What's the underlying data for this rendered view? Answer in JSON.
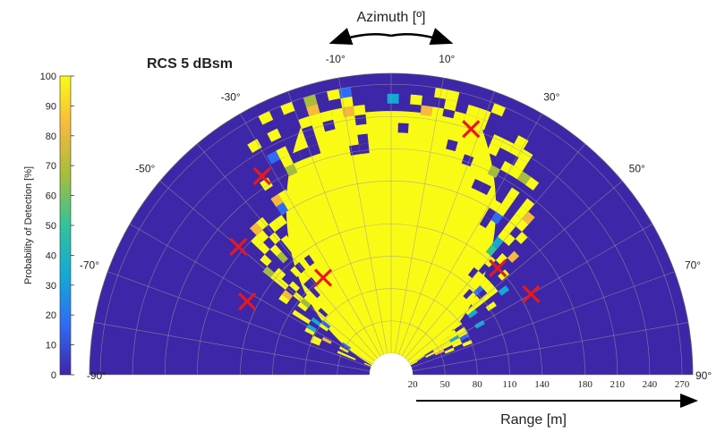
{
  "chart_data": {
    "type": "heatmap",
    "title": "RCS 5 dBsm",
    "azimuth_label": "Azimuth [º]",
    "range_label": "Range [m]",
    "colorbar_label": "Probability of Detection [%]",
    "colorbar_ticks": [
      "0",
      "10",
      "20",
      "30",
      "40",
      "50",
      "60",
      "70",
      "80",
      "90",
      "100"
    ],
    "colorbar_range": [
      0,
      100
    ],
    "colormap": [
      "#3e26a8",
      "#2f6cf6",
      "#13a8d6",
      "#31c39a",
      "#a5be3b",
      "#f5b93c",
      "#f9fb15"
    ],
    "azimuth_ticks": [
      {
        "deg": -90,
        "label": "-90°"
      },
      {
        "deg": -70,
        "label": "-70°"
      },
      {
        "deg": -50,
        "label": "-50°"
      },
      {
        "deg": -30,
        "label": "-30°"
      },
      {
        "deg": -10,
        "label": "-10°"
      },
      {
        "deg": 10,
        "label": "10°"
      },
      {
        "deg": 30,
        "label": "30°"
      },
      {
        "deg": 50,
        "label": "50°"
      },
      {
        "deg": 70,
        "label": "70°"
      },
      {
        "deg": 90,
        "label": "90°"
      }
    ],
    "range_ticks": [
      20,
      50,
      80,
      110,
      140,
      180,
      210,
      240,
      270
    ],
    "range_tick_labels": [
      "20",
      "50",
      "80",
      "110",
      "140",
      "180",
      "210",
      "240",
      "270"
    ],
    "range_max": 280,
    "grid": true,
    "markers": [
      {
        "azimuth": -63,
        "range": 150
      },
      {
        "azimuth": -50,
        "range": 185
      },
      {
        "azimuth": -33,
        "range": 220
      },
      {
        "azimuth": -35,
        "range": 110
      },
      {
        "azimuth": 18,
        "range": 240
      },
      {
        "azimuth": 45,
        "range": 140
      },
      {
        "azimuth": 60,
        "range": 150
      }
    ]
  }
}
